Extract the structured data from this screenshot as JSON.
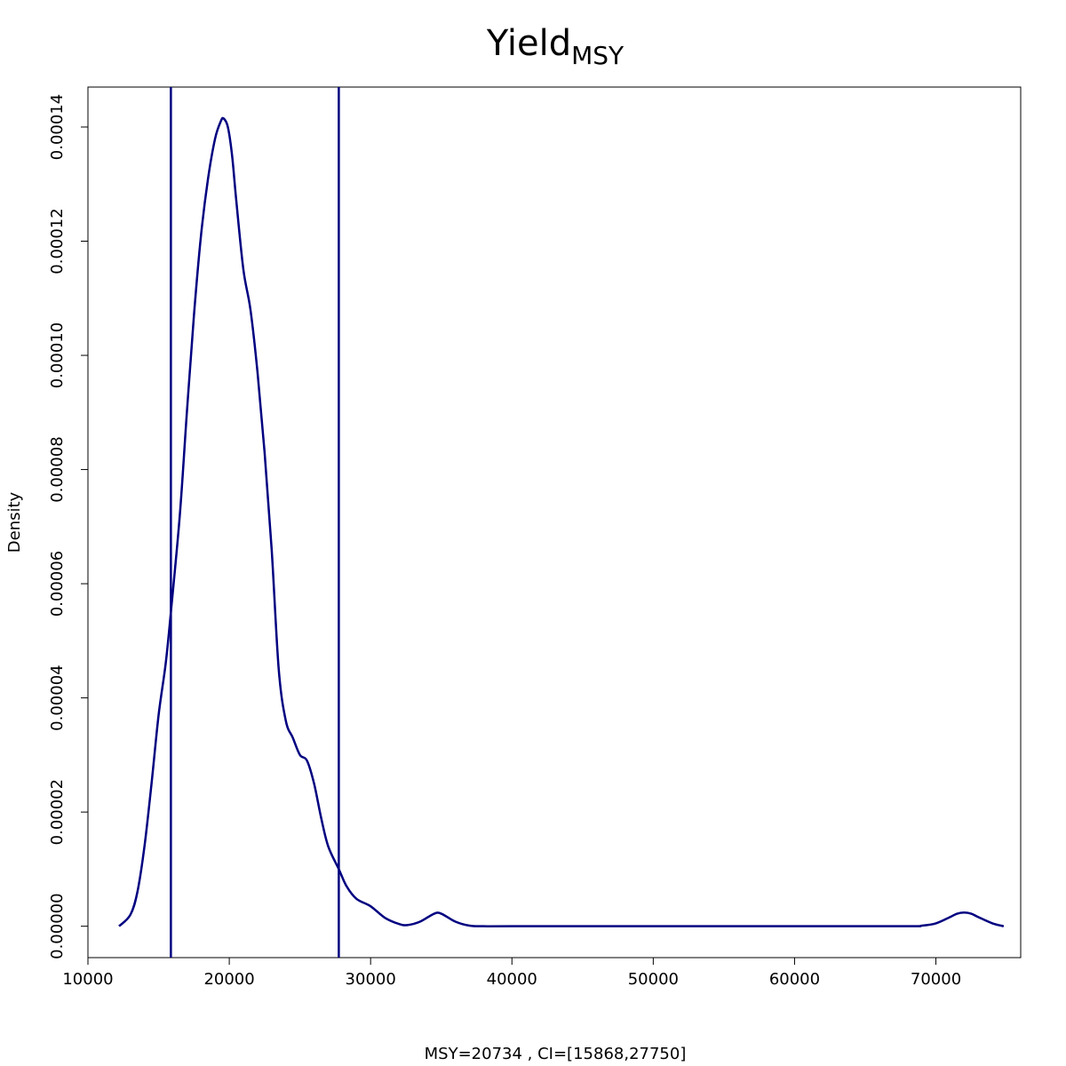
{
  "chart_data": {
    "type": "line",
    "title": "Yield",
    "title_subscript": "MSY",
    "xlabel": "MSY=20734 , CI=[15868,27750]",
    "ylabel": "Density",
    "xlim": [
      10000,
      76000
    ],
    "ylim": [
      -5.5e-06,
      0.000147
    ],
    "x_ticks": [
      10000,
      20000,
      30000,
      40000,
      50000,
      60000,
      70000
    ],
    "y_ticks": [
      0.0,
      2e-05,
      4e-05,
      6e-05,
      8e-05,
      0.0001,
      0.00012,
      0.00014
    ],
    "x_tick_labels": [
      "10000",
      "20000",
      "30000",
      "40000",
      "50000",
      "60000",
      "70000"
    ],
    "y_tick_labels": [
      "0.00000",
      "0.00002",
      "0.00004",
      "0.00006",
      "0.00008",
      "0.00010",
      "0.00012",
      "0.00014"
    ],
    "line_color": "#000080",
    "grid": false,
    "vlines": [
      15868,
      27750
    ],
    "series": [
      {
        "x": [
          12200,
          13000,
          13500,
          14000,
          14500,
          15000,
          15500,
          15868,
          16500,
          17000,
          17500,
          18000,
          18500,
          19000,
          19400,
          19600,
          19900,
          20200,
          20500,
          21000,
          21500,
          22000,
          22500,
          23000,
          23500,
          24000,
          24500,
          25000,
          25500,
          26000,
          26500,
          27000,
          27750,
          28300,
          29000,
          30000,
          31000,
          32000,
          32600,
          33500,
          34500,
          35000,
          36000,
          37000,
          38000,
          40000,
          50000,
          60000,
          68000,
          69000,
          70000,
          71000,
          71500,
          72000,
          72500,
          73000,
          74000,
          74800
        ],
        "y": [
          0.0,
          2e-06,
          6e-06,
          1.4e-05,
          2.5e-05,
          3.7e-05,
          4.6e-05,
          5.5e-05,
          7.2e-05,
          9e-05,
          0.000107,
          0.000121,
          0.000131,
          0.000138,
          0.000141,
          0.0001415,
          0.00014,
          0.000135,
          0.000127,
          0.000115,
          0.000108,
          9.7e-05,
          8.3e-05,
          6.6e-05,
          4.5e-05,
          3.6e-05,
          3.3e-05,
          3e-05,
          2.9e-05,
          2.5e-05,
          1.9e-05,
          1.4e-05,
          1e-05,
          7e-06,
          4.8e-06,
          3.5e-06,
          1.5e-06,
          4e-07,
          2e-07,
          8e-07,
          2.2e-06,
          2.2e-06,
          8e-07,
          1e-07,
          0.0,
          0.0,
          0.0,
          0.0,
          0.0,
          1e-07,
          5e-07,
          1.6e-06,
          2.2e-06,
          2.4e-06,
          2.2e-06,
          1.6e-06,
          5e-07,
          0.0
        ]
      }
    ]
  }
}
